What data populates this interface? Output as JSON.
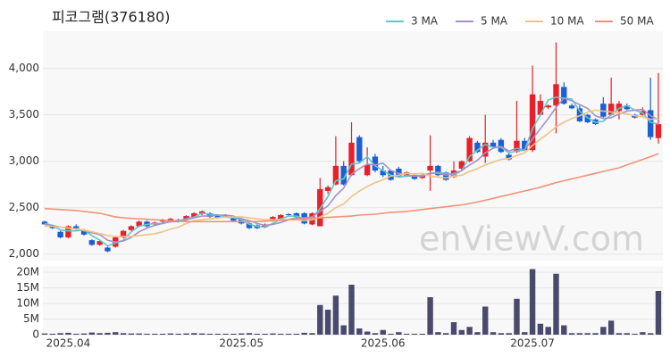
{
  "chart_data": [
    {
      "type": "candlestick",
      "title": "피코그램(376180)",
      "watermark": "enViewV.com",
      "up_color": "#e8202a",
      "down_color": "#1b5fd6",
      "grid": true,
      "legend": "top-right",
      "ylim": [
        1930,
        4400
      ],
      "yticks": [
        {
          "value": 2000,
          "label": "2,000"
        },
        {
          "value": 2500,
          "label": "2,500"
        },
        {
          "value": 3000,
          "label": "3,000"
        },
        {
          "value": 3500,
          "label": "3,500"
        },
        {
          "value": 4000,
          "label": "4,000"
        }
      ],
      "open": [
        2350,
        2300,
        2240,
        2180,
        2300,
        2260,
        2150,
        2100,
        2070,
        2080,
        2180,
        2260,
        2300,
        2350,
        2320,
        2350,
        2350,
        2370,
        2370,
        2400,
        2440,
        2440,
        2420,
        2400,
        2400,
        2380,
        2330,
        2310,
        2290,
        2360,
        2380,
        2430,
        2440,
        2440,
        2320,
        2300,
        2680,
        2750,
        2950,
        2850,
        3260,
        2850,
        3050,
        2900,
        2900,
        2920,
        2840,
        2850,
        2820,
        2900,
        2950,
        2880,
        2830,
        2920,
        3000,
        3200,
        3050,
        3200,
        3230,
        3070,
        3100,
        3220,
        3120,
        3500,
        3580,
        3600,
        3800,
        3600,
        3570,
        3500,
        3450,
        3620,
        3500,
        3540,
        3600,
        3500,
        3500,
        3550,
        3250
      ],
      "high": [
        2360,
        2310,
        2250,
        2310,
        2320,
        2270,
        2160,
        2150,
        2080,
        2190,
        2260,
        2310,
        2360,
        2360,
        2350,
        2380,
        2390,
        2380,
        2420,
        2450,
        2470,
        2450,
        2430,
        2430,
        2410,
        2390,
        2340,
        2320,
        2330,
        2410,
        2430,
        2440,
        2450,
        2450,
        2450,
        2820,
        2740,
        3270,
        3000,
        3420,
        3280,
        3150,
        3080,
        2950,
        2910,
        2940,
        2890,
        2870,
        2860,
        3280,
        2960,
        2890,
        3000,
        3010,
        3270,
        3220,
        3500,
        3230,
        3250,
        3090,
        3650,
        3250,
        4030,
        3720,
        3610,
        4280,
        3850,
        3620,
        3600,
        3510,
        3460,
        3690,
        3900,
        3650,
        3620,
        3510,
        3580,
        3900,
        3950
      ],
      "low": [
        2320,
        2270,
        2170,
        2170,
        2260,
        2200,
        2090,
        2090,
        2020,
        2070,
        2170,
        2250,
        2290,
        2290,
        2310,
        2330,
        2340,
        2340,
        2360,
        2390,
        2420,
        2390,
        2380,
        2390,
        2350,
        2320,
        2270,
        2270,
        2280,
        2350,
        2370,
        2410,
        2390,
        2320,
        2310,
        2300,
        2650,
        2740,
        2740,
        2840,
        2980,
        2840,
        2880,
        2830,
        2790,
        2830,
        2830,
        2800,
        2810,
        2680,
        2840,
        2790,
        2820,
        2900,
        2990,
        3090,
        2980,
        3140,
        3090,
        3010,
        3090,
        3110,
        3100,
        3490,
        3560,
        3300,
        3610,
        3560,
        3420,
        3410,
        3390,
        3470,
        3490,
        3450,
        3550,
        3460,
        3490,
        3230,
        3190
      ],
      "close": [
        2320,
        2280,
        2180,
        2300,
        2280,
        2210,
        2100,
        2140,
        2030,
        2180,
        2250,
        2300,
        2350,
        2300,
        2340,
        2360,
        2380,
        2350,
        2410,
        2440,
        2460,
        2400,
        2390,
        2420,
        2360,
        2330,
        2280,
        2280,
        2320,
        2400,
        2420,
        2420,
        2400,
        2330,
        2440,
        2700,
        2720,
        2950,
        2750,
        3200,
        3000,
        2960,
        2900,
        2850,
        2800,
        2840,
        2880,
        2810,
        2850,
        2950,
        2850,
        2800,
        2900,
        3000,
        3250,
        3100,
        3200,
        3150,
        3100,
        3020,
        3220,
        3120,
        3720,
        3650,
        3600,
        3830,
        3620,
        3570,
        3430,
        3420,
        3400,
        3480,
        3620,
        3620,
        3560,
        3470,
        3540,
        3260,
        3400
      ],
      "series": [
        {
          "name": "3 MA",
          "color": "#5ec8c8",
          "values": [
            2330,
            2310,
            2260,
            2250,
            2250,
            2260,
            2200,
            2150,
            2090,
            2120,
            2150,
            2240,
            2300,
            2320,
            2330,
            2330,
            2360,
            2360,
            2380,
            2400,
            2440,
            2430,
            2420,
            2400,
            2390,
            2370,
            2320,
            2300,
            2290,
            2330,
            2380,
            2410,
            2410,
            2380,
            2390,
            2490,
            2620,
            2790,
            2810,
            2970,
            2980,
            3050,
            2950,
            2900,
            2850,
            2830,
            2840,
            2840,
            2850,
            2870,
            2880,
            2870,
            2850,
            2900,
            3050,
            3120,
            3180,
            3150,
            3150,
            3090,
            3110,
            3120,
            3350,
            3500,
            3660,
            3690,
            3680,
            3670,
            3540,
            3470,
            3420,
            3430,
            3500,
            3570,
            3600,
            3550,
            3520,
            3420,
            3400
          ]
        },
        {
          "name": "5 MA",
          "color": "#a88fca",
          "values": [
            2320,
            2310,
            2290,
            2280,
            2270,
            2250,
            2230,
            2210,
            2150,
            2130,
            2140,
            2180,
            2240,
            2280,
            2310,
            2330,
            2350,
            2350,
            2370,
            2390,
            2410,
            2410,
            2420,
            2420,
            2410,
            2380,
            2360,
            2330,
            2310,
            2320,
            2340,
            2370,
            2390,
            2390,
            2400,
            2460,
            2520,
            2630,
            2710,
            2860,
            2920,
            2970,
            2960,
            2980,
            2900,
            2870,
            2850,
            2840,
            2840,
            2870,
            2870,
            2850,
            2870,
            2900,
            2960,
            3010,
            3090,
            3140,
            3160,
            3110,
            3140,
            3120,
            3240,
            3350,
            3460,
            3580,
            3680,
            3650,
            3610,
            3570,
            3490,
            3460,
            3470,
            3510,
            3540,
            3550,
            3560,
            3490,
            3450
          ]
        },
        {
          "name": "10 MA",
          "color": "#f2c184",
          "values": [
            2300,
            2300,
            2290,
            2280,
            2270,
            2260,
            2240,
            2220,
            2200,
            2190,
            2190,
            2190,
            2200,
            2210,
            2220,
            2240,
            2270,
            2290,
            2330,
            2360,
            2370,
            2380,
            2390,
            2400,
            2400,
            2400,
            2390,
            2380,
            2370,
            2370,
            2370,
            2370,
            2370,
            2360,
            2370,
            2400,
            2440,
            2500,
            2540,
            2620,
            2680,
            2730,
            2770,
            2800,
            2840,
            2850,
            2870,
            2860,
            2870,
            2840,
            2830,
            2820,
            2840,
            2850,
            2890,
            2920,
            2960,
            2990,
            3020,
            3030,
            3060,
            3090,
            3170,
            3240,
            3300,
            3370,
            3420,
            3460,
            3490,
            3530,
            3550,
            3540,
            3530,
            3520,
            3510,
            3490,
            3480,
            3450,
            3460
          ]
        },
        {
          "name": "50 MA",
          "color": "#f29279",
          "values": [
            2490,
            2485,
            2480,
            2475,
            2470,
            2460,
            2450,
            2440,
            2420,
            2400,
            2390,
            2385,
            2380,
            2375,
            2370,
            2365,
            2360,
            2355,
            2350,
            2350,
            2350,
            2350,
            2350,
            2350,
            2350,
            2350,
            2350,
            2350,
            2355,
            2360,
            2365,
            2370,
            2375,
            2380,
            2385,
            2390,
            2395,
            2400,
            2405,
            2410,
            2420,
            2425,
            2430,
            2440,
            2450,
            2455,
            2460,
            2470,
            2480,
            2490,
            2500,
            2510,
            2520,
            2530,
            2545,
            2560,
            2580,
            2600,
            2620,
            2640,
            2660,
            2680,
            2700,
            2720,
            2745,
            2770,
            2790,
            2810,
            2830,
            2850,
            2870,
            2890,
            2910,
            2930,
            2960,
            2990,
            3020,
            3050,
            3080
          ]
        }
      ]
    },
    {
      "type": "bar",
      "color": "#4a4a6c",
      "ylim": [
        0,
        22000000
      ],
      "yticks": [
        0,
        {
          "value": 5000000,
          "label": "5M"
        },
        {
          "value": 10000000,
          "label": "10M"
        },
        {
          "value": 15000000,
          "label": "15M"
        },
        {
          "value": 20000000,
          "label": "20M"
        }
      ],
      "categories": [
        null,
        null,
        null,
        "2025.04",
        null,
        null,
        null,
        null,
        null,
        null,
        null,
        null,
        null,
        null,
        null,
        null,
        null,
        null,
        null,
        null,
        null,
        null,
        null,
        null,
        null,
        "2025.05",
        null,
        null,
        null,
        null,
        null,
        null,
        null,
        null,
        null,
        null,
        null,
        null,
        null,
        null,
        null,
        null,
        null,
        "2025.06",
        null,
        null,
        null,
        null,
        null,
        null,
        null,
        null,
        null,
        null,
        null,
        null,
        null,
        null,
        null,
        null,
        null,
        null,
        "2025.07",
        null,
        null,
        null,
        null,
        null,
        null,
        null,
        null,
        null,
        null,
        null,
        null,
        null,
        null,
        null,
        null
      ],
      "values": [
        400000,
        300000,
        500000,
        600000,
        300000,
        400000,
        700000,
        500000,
        600000,
        800000,
        500000,
        400000,
        400000,
        300000,
        300000,
        300000,
        400000,
        300000,
        400000,
        500000,
        400000,
        300000,
        300000,
        300000,
        300000,
        400000,
        500000,
        300000,
        300000,
        400000,
        300000,
        300000,
        300000,
        600000,
        500000,
        9500000,
        8000000,
        12500000,
        3000000,
        16000000,
        2000000,
        1000000,
        500000,
        1500000,
        300000,
        800000,
        300000,
        300000,
        300000,
        12000000,
        800000,
        500000,
        4000000,
        1500000,
        2500000,
        800000,
        9000000,
        800000,
        500000,
        500000,
        11500000,
        800000,
        21000000,
        3500000,
        2500000,
        19500000,
        3000000,
        500000,
        500000,
        500000,
        500000,
        2500000,
        4500000,
        500000,
        500000,
        300000,
        800000,
        500000,
        14000000
      ]
    }
  ]
}
